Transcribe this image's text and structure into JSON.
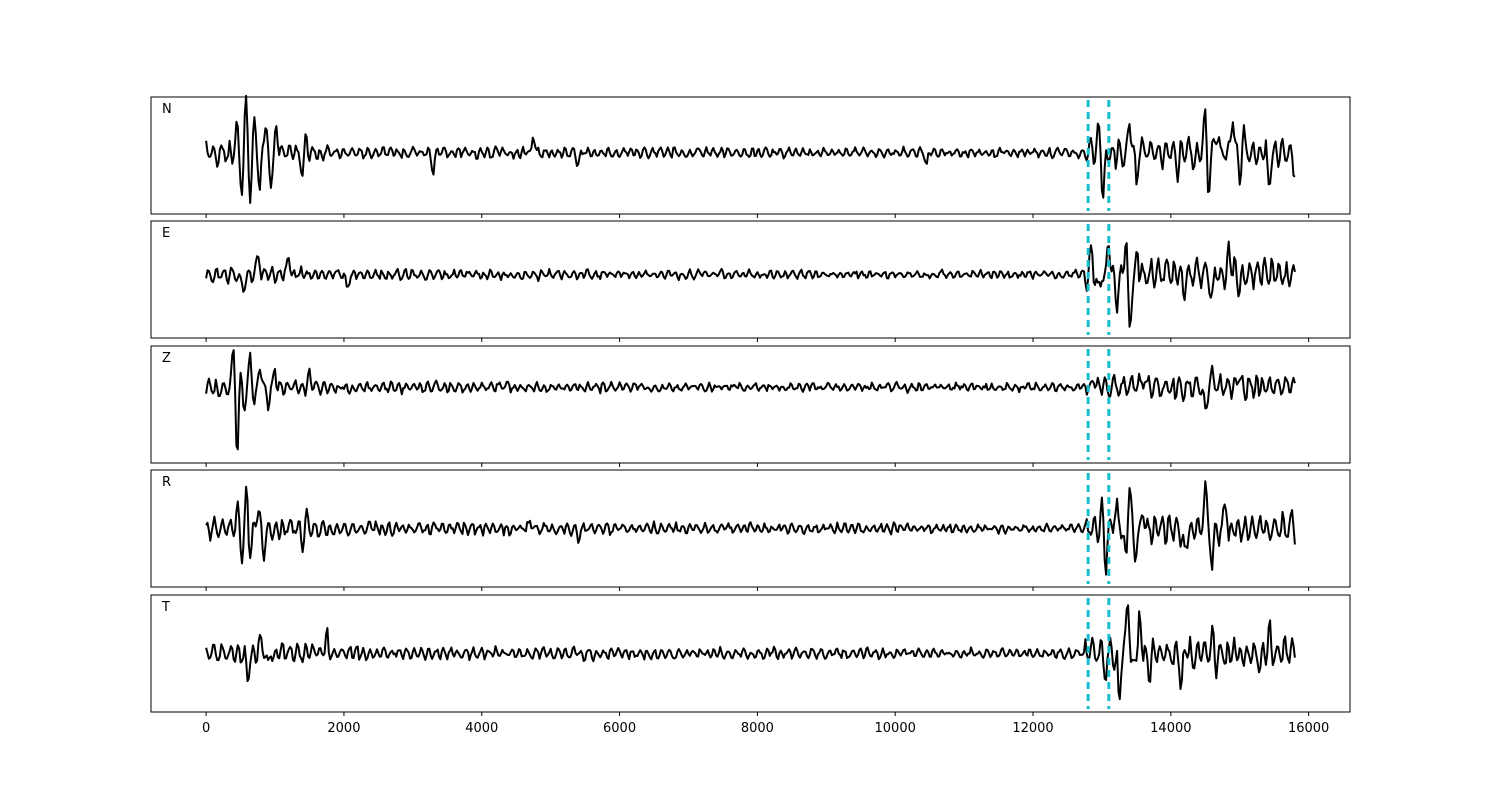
{
  "chart_data": {
    "type": "line",
    "x_ticks": [
      0,
      2000,
      4000,
      6000,
      8000,
      10000,
      12000,
      14000,
      16000
    ],
    "x_tick_labels": [
      "0",
      "2000",
      "4000",
      "6000",
      "8000",
      "10000",
      "12000",
      "14000",
      "16000"
    ],
    "xlim": [
      -800,
      16600
    ],
    "markers_x": [
      12800,
      13100
    ],
    "marker_color": "#17becf",
    "trace_color": "#000000",
    "x_range": [
      0,
      15800
    ],
    "panels": [
      {
        "label": "N",
        "baseline": 0,
        "ylim": [
          -6.8,
          6.2
        ],
        "features": [
          {
            "x": 450,
            "y": 3.0
          },
          {
            "x": 520,
            "y": -4.5
          },
          {
            "x": 580,
            "y": 5.6
          },
          {
            "x": 640,
            "y": -4.8
          },
          {
            "x": 700,
            "y": 3.5
          },
          {
            "x": 780,
            "y": -4.0
          },
          {
            "x": 860,
            "y": 3.7
          },
          {
            "x": 940,
            "y": -3.2
          },
          {
            "x": 1020,
            "y": 2.0
          },
          {
            "x": 1400,
            "y": -2.6
          },
          {
            "x": 1450,
            "y": 2.3
          },
          {
            "x": 3300,
            "y": -2.0
          },
          {
            "x": 4750,
            "y": 1.9
          },
          {
            "x": 5400,
            "y": -1.3
          },
          {
            "x": 10450,
            "y": -1.5
          },
          {
            "x": 12950,
            "y": 2.8
          },
          {
            "x": 13020,
            "y": -4.6
          },
          {
            "x": 13400,
            "y": 3.8
          },
          {
            "x": 13500,
            "y": -3.0
          },
          {
            "x": 14100,
            "y": -2.0
          },
          {
            "x": 14500,
            "y": 4.6
          },
          {
            "x": 14550,
            "y": -4.6
          },
          {
            "x": 14650,
            "y": 3.0
          },
          {
            "x": 14900,
            "y": 3.8
          },
          {
            "x": 15000,
            "y": -2.8
          },
          {
            "x": 15050,
            "y": 2.6
          },
          {
            "x": 15420,
            "y": -3.3
          },
          {
            "x": 15800,
            "y": -2.0
          }
        ]
      },
      {
        "label": "E",
        "baseline": 0,
        "ylim": [
          -6.4,
          5.4
        ],
        "features": [
          {
            "x": 530,
            "y": -1.5
          },
          {
            "x": 760,
            "y": 1.6
          },
          {
            "x": 1200,
            "y": 1.6
          },
          {
            "x": 2050,
            "y": -1.2
          },
          {
            "x": 12850,
            "y": 2.6
          },
          {
            "x": 12950,
            "y": -2.0
          },
          {
            "x": 13100,
            "y": 3.0
          },
          {
            "x": 13220,
            "y": -2.2
          },
          {
            "x": 13350,
            "y": 4.0
          },
          {
            "x": 13400,
            "y": -5.8
          },
          {
            "x": 13520,
            "y": 1.8
          },
          {
            "x": 14200,
            "y": -1.6
          },
          {
            "x": 14600,
            "y": -2.2
          },
          {
            "x": 14850,
            "y": 2.0
          },
          {
            "x": 15000,
            "y": -1.2
          }
        ]
      },
      {
        "label": "Z",
        "baseline": 0,
        "ylim": [
          -6.6,
          3.6
        ],
        "features": [
          {
            "x": 400,
            "y": 3.4
          },
          {
            "x": 450,
            "y": -6.1
          },
          {
            "x": 500,
            "y": 1.0
          },
          {
            "x": 560,
            "y": -1.8
          },
          {
            "x": 640,
            "y": 3.2
          },
          {
            "x": 700,
            "y": -1.8
          },
          {
            "x": 780,
            "y": 2.0
          },
          {
            "x": 900,
            "y": -1.5
          },
          {
            "x": 1000,
            "y": 1.4
          },
          {
            "x": 1500,
            "y": 1.2
          },
          {
            "x": 12900,
            "y": 0.8
          },
          {
            "x": 13600,
            "y": 1.2
          },
          {
            "x": 14500,
            "y": -2.4
          },
          {
            "x": 14600,
            "y": 1.3
          },
          {
            "x": 15000,
            "y": 1.2
          }
        ]
      },
      {
        "label": "R",
        "baseline": 0,
        "ylim": [
          -6.2,
          6.2
        ],
        "features": [
          {
            "x": 450,
            "y": 2.0
          },
          {
            "x": 520,
            "y": -3.0
          },
          {
            "x": 590,
            "y": 4.0
          },
          {
            "x": 640,
            "y": -2.8
          },
          {
            "x": 760,
            "y": 2.5
          },
          {
            "x": 830,
            "y": -2.6
          },
          {
            "x": 1400,
            "y": -1.8
          },
          {
            "x": 1460,
            "y": 1.4
          },
          {
            "x": 4700,
            "y": 1.0
          },
          {
            "x": 5400,
            "y": -1.2
          },
          {
            "x": 13000,
            "y": 3.0
          },
          {
            "x": 13050,
            "y": -4.2
          },
          {
            "x": 13200,
            "y": 2.5
          },
          {
            "x": 13350,
            "y": -4.0
          },
          {
            "x": 13400,
            "y": 5.6
          },
          {
            "x": 13480,
            "y": -3.5
          },
          {
            "x": 13600,
            "y": 2.0
          },
          {
            "x": 14200,
            "y": -2.5
          },
          {
            "x": 14500,
            "y": 3.8
          },
          {
            "x": 14600,
            "y": -4.2
          },
          {
            "x": 14800,
            "y": 2.0
          },
          {
            "x": 15780,
            "y": 1.2
          },
          {
            "x": 15800,
            "y": -1.4
          }
        ]
      },
      {
        "label": "T",
        "baseline": 0,
        "ylim": [
          -6.0,
          6.0
        ],
        "features": [
          {
            "x": 600,
            "y": -2.8
          },
          {
            "x": 800,
            "y": 1.6
          },
          {
            "x": 900,
            "y": -1.5
          },
          {
            "x": 1750,
            "y": 1.8
          },
          {
            "x": 12850,
            "y": 0.9
          },
          {
            "x": 13050,
            "y": -1.2
          },
          {
            "x": 13250,
            "y": -4.6
          },
          {
            "x": 13380,
            "y": 5.5
          },
          {
            "x": 13450,
            "y": -1.8
          },
          {
            "x": 13550,
            "y": 3.2
          },
          {
            "x": 13700,
            "y": -2.6
          },
          {
            "x": 14150,
            "y": -3.3
          },
          {
            "x": 14600,
            "y": 1.8
          },
          {
            "x": 14650,
            "y": -1.5
          },
          {
            "x": 15300,
            "y": -1.2
          },
          {
            "x": 15430,
            "y": 2.8
          }
        ]
      }
    ]
  }
}
